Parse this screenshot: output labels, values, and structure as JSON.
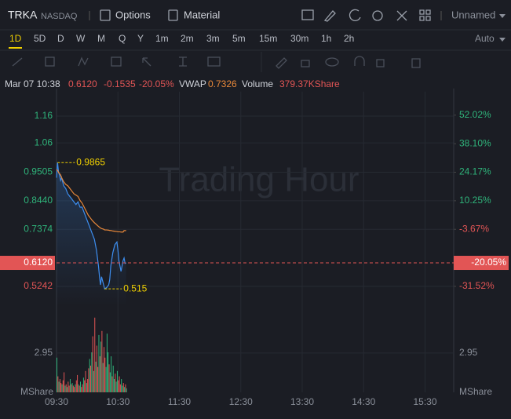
{
  "header": {
    "symbol": "TRKA",
    "exchange": "NASDAQ",
    "options": "Options",
    "material": "Material",
    "layout": "Unnamed"
  },
  "periods": {
    "items": [
      "1D",
      "5D",
      "D",
      "W",
      "M",
      "Q",
      "Y",
      "1m",
      "2m",
      "3m",
      "5m",
      "15m",
      "30m",
      "1h",
      "2h"
    ],
    "selected": 0,
    "mode": "Auto"
  },
  "info": {
    "time": "Mar 07 10:38",
    "price": "0.6120",
    "change": "-0.1535",
    "change_pct": "-20.05%",
    "vwap_label": "VWAP",
    "vwap": "0.7326",
    "volume_label": "Volume",
    "volume": "379.37KShare"
  },
  "chart_data": {
    "type": "line",
    "watermark": "Trading Hour",
    "x": [
      0,
      1,
      2,
      3,
      4,
      5,
      7,
      9,
      11,
      13,
      15,
      17,
      19,
      21,
      23,
      25,
      27,
      29,
      31,
      33,
      35,
      37,
      39,
      41,
      42,
      43,
      44,
      46,
      47,
      49,
      51,
      52,
      53,
      55,
      57,
      59,
      60,
      61,
      62,
      63,
      64,
      65,
      66,
      67,
      68
    ],
    "series": [
      {
        "color": "#3d8ef0",
        "values": [
          0.93,
          0.9865,
          0.95,
          0.94,
          0.92,
          0.93,
          0.9,
          0.89,
          0.87,
          0.86,
          0.85,
          0.84,
          0.83,
          0.84,
          0.82,
          0.82,
          0.8,
          0.78,
          0.76,
          0.74,
          0.72,
          0.7,
          0.66,
          0.6,
          0.56,
          0.53,
          0.56,
          0.53,
          0.515,
          0.52,
          0.53,
          0.55,
          0.6,
          0.65,
          0.68,
          0.69,
          0.66,
          0.62,
          0.6,
          0.58,
          0.6,
          0.62,
          0.63,
          0.61,
          0.612
        ]
      },
      {
        "color": "#e8883a",
        "values": [
          0.96,
          0.958,
          0.95,
          0.945,
          0.94,
          0.93,
          0.915,
          0.905,
          0.9,
          0.89,
          0.88,
          0.87,
          0.865,
          0.86,
          0.845,
          0.835,
          0.82,
          0.805,
          0.79,
          0.78,
          0.77,
          0.762,
          0.755,
          0.748,
          0.745,
          0.742,
          0.74,
          0.738,
          0.735,
          0.735,
          0.734,
          0.733,
          0.733,
          0.731,
          0.73,
          0.729,
          0.728,
          0.728,
          0.728,
          0.727,
          0.727,
          0.727,
          0.7326,
          0.7326,
          0.7326
        ]
      }
    ],
    "max": {
      "x": 1,
      "value": 0.9865
    },
    "min": {
      "x": 47,
      "value": 0.515
    },
    "annotation_color": "#f0d000",
    "xlim": [
      0,
      388
    ],
    "xticks": [
      {
        "value": 0,
        "label": "09:30"
      },
      {
        "value": 60,
        "label": "10:30"
      },
      {
        "value": 120,
        "label": "11:30"
      },
      {
        "value": 180,
        "label": "12:30"
      },
      {
        "value": 240,
        "label": "13:30"
      },
      {
        "value": 300,
        "label": "14:30"
      },
      {
        "value": 360,
        "label": "15:30"
      }
    ],
    "ylim": [
      0.45,
      1.24
    ],
    "yticks": [
      1.16,
      1.06,
      0.9505,
      {
        "value": 0.844,
        "label": "0.8440"
      },
      0.7374,
      0.5242
    ],
    "y2lim": [
      -41.21,
      61.99
    ],
    "y2ticks": [
      {
        "value": 52.02,
        "label": "52.02%"
      },
      {
        "value": 38.1,
        "label": "38.10%"
      },
      {
        "value": 24.17,
        "label": "24.17%"
      },
      {
        "value": 10.25,
        "label": "10.25%"
      },
      {
        "value": -3.67,
        "label": "-3.67%"
      },
      {
        "value": -31.52,
        "label": "-31.52%"
      }
    ],
    "crosshair": {
      "price": {
        "value": 0.612,
        "label": "0.6120"
      },
      "change": {
        "value": -20.05,
        "label": "-20.05%"
      },
      "color": "#e25555"
    },
    "up_color": "#2fb37a",
    "down_color": "#e25555",
    "volume": {
      "unit": "MShare",
      "values": [
        2.6,
        1.2,
        0.8,
        1.0,
        0.7,
        0.6,
        0.9,
        1.5,
        0.5,
        0.6,
        0.4,
        0.8,
        0.5,
        1.0,
        0.6,
        0.7,
        0.5,
        0.4,
        0.6,
        0.9,
        1.3,
        0.6,
        0.5,
        0.8,
        0.4,
        0.6,
        1.1,
        0.9,
        1.6,
        0.7,
        1.0,
        1.8,
        2.5,
        2.0,
        3.0,
        4.2,
        1.6,
        5.6,
        2.3,
        3.5,
        1.9,
        4.3,
        2.7,
        3.8,
        4.6,
        2.2,
        3.4,
        2.6,
        1.9,
        4.4,
        3.0,
        2.1,
        1.5,
        2.7,
        1.2,
        2.0,
        1.0,
        1.4,
        0.8,
        1.6,
        0.9,
        1.2,
        0.6,
        1.0,
        0.5,
        0.7,
        0.4,
        0.6,
        0.3
      ],
      "colors": [
        "#2fb37a",
        "#e25555",
        "#2fb37a",
        "#e25555",
        "#e25555",
        "#2fb37a",
        "#e25555",
        "#e25555",
        "#2fb37a",
        "#e25555",
        "#2fb37a",
        "#e25555",
        "#e25555",
        "#2fb37a",
        "#e25555",
        "#2fb37a",
        "#e25555",
        "#e25555",
        "#2fb37a",
        "#e25555",
        "#e25555",
        "#2fb37a",
        "#e25555",
        "#2fb37a",
        "#e25555",
        "#e25555",
        "#2fb37a",
        "#e25555",
        "#e25555",
        "#2fb37a",
        "#e25555",
        "#e25555",
        "#2fb37a",
        "#e25555",
        "#2fb37a",
        "#e25555",
        "#2fb37a",
        "#e25555",
        "#2fb37a",
        "#e25555",
        "#e25555",
        "#2fb37a",
        "#e25555",
        "#2fb37a",
        "#e25555",
        "#2fb37a",
        "#e25555",
        "#e25555",
        "#2fb37a",
        "#2fb37a",
        "#2fb37a",
        "#e25555",
        "#2fb37a",
        "#2fb37a",
        "#e25555",
        "#2fb37a",
        "#2fb37a",
        "#e25555",
        "#2fb37a",
        "#2fb37a",
        "#e25555",
        "#e25555",
        "#e25555",
        "#2fb37a",
        "#2fb37a",
        "#e25555",
        "#2fb37a",
        "#e25555",
        "#2fb37a"
      ],
      "vlim": [
        0,
        6
      ],
      "vticks": [
        2.95
      ]
    },
    "grid": true
  }
}
